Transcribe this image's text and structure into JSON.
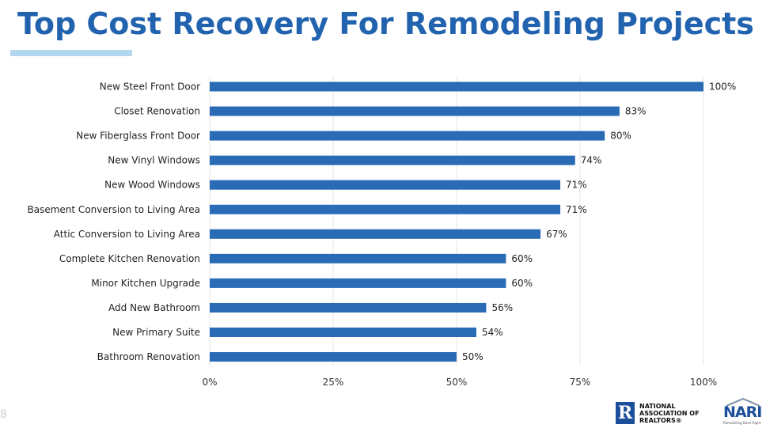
{
  "header": {
    "title": "Top Cost Recovery For Remodeling Projects"
  },
  "footer": {
    "page_number": "8",
    "nar_logo_text": "NATIONAL\nASSOCIATION OF\nREALTORS®",
    "nari_logo_text": "NARI",
    "nari_tagline": "Remodeling Done Right"
  },
  "colors": {
    "title": "#2163ae",
    "bar": "#2a6bb5",
    "accent_rule": "#b3d7ee",
    "grid": "#e6e6e6"
  },
  "chart_data": {
    "type": "bar",
    "orientation": "horizontal",
    "categories": [
      "New Steel Front Door",
      "Closet Renovation",
      "New Fiberglass Front Door",
      "New Vinyl Windows",
      "New Wood Windows",
      "Basement Conversion to Living Area",
      "Attic Conversion to Living Area",
      "Complete Kitchen Renovation",
      "Minor Kitchen Upgrade",
      "Add New Bathroom",
      "New Primary Suite",
      "Bathroom Renovation"
    ],
    "values": [
      100,
      83,
      80,
      74,
      71,
      71,
      67,
      60,
      60,
      56,
      54,
      50
    ],
    "value_labels": [
      "100%",
      "83%",
      "80%",
      "74%",
      "71%",
      "71%",
      "67%",
      "60%",
      "60%",
      "56%",
      "54%",
      "50%"
    ],
    "xlim": [
      0,
      100
    ],
    "x_ticks": [
      0,
      25,
      50,
      75,
      100
    ],
    "x_tick_labels": [
      "0%",
      "25%",
      "50%",
      "75%",
      "100%"
    ],
    "grid": true,
    "legend": "none"
  }
}
